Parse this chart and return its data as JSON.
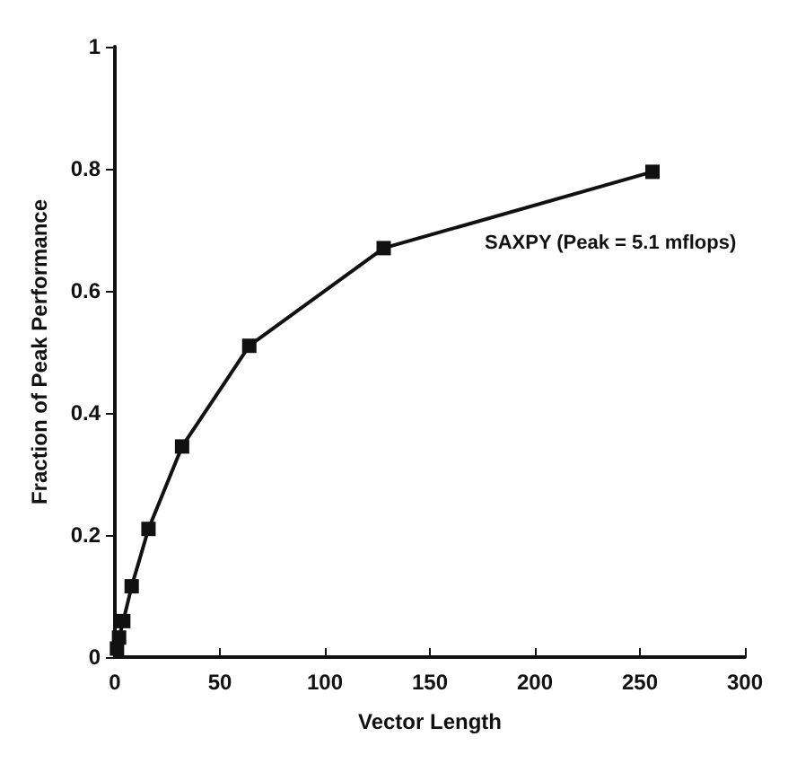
{
  "chart_data": {
    "type": "line",
    "xlabel": "Vector Length",
    "ylabel": "Fraction of Peak Performance",
    "x": [
      1,
      2,
      4,
      8,
      16,
      32,
      64,
      128,
      256
    ],
    "series": [
      {
        "color": "#111111",
        "values": [
          0.014,
          0.032,
          0.059,
          0.116,
          0.21,
          0.345,
          0.51,
          0.67,
          0.795
        ]
      }
    ],
    "xlim": [
      0,
      300
    ],
    "xticks": [
      0,
      50,
      100,
      150,
      200,
      250,
      300
    ],
    "ylim": [
      0,
      1
    ],
    "yticks": [
      0,
      0.2,
      0.4,
      0.6,
      0.8,
      1
    ],
    "annotations": [
      "SAXPY (Peak = 5.1 mflops)"
    ],
    "grid": false,
    "marker": "square",
    "line_style": "solid"
  }
}
